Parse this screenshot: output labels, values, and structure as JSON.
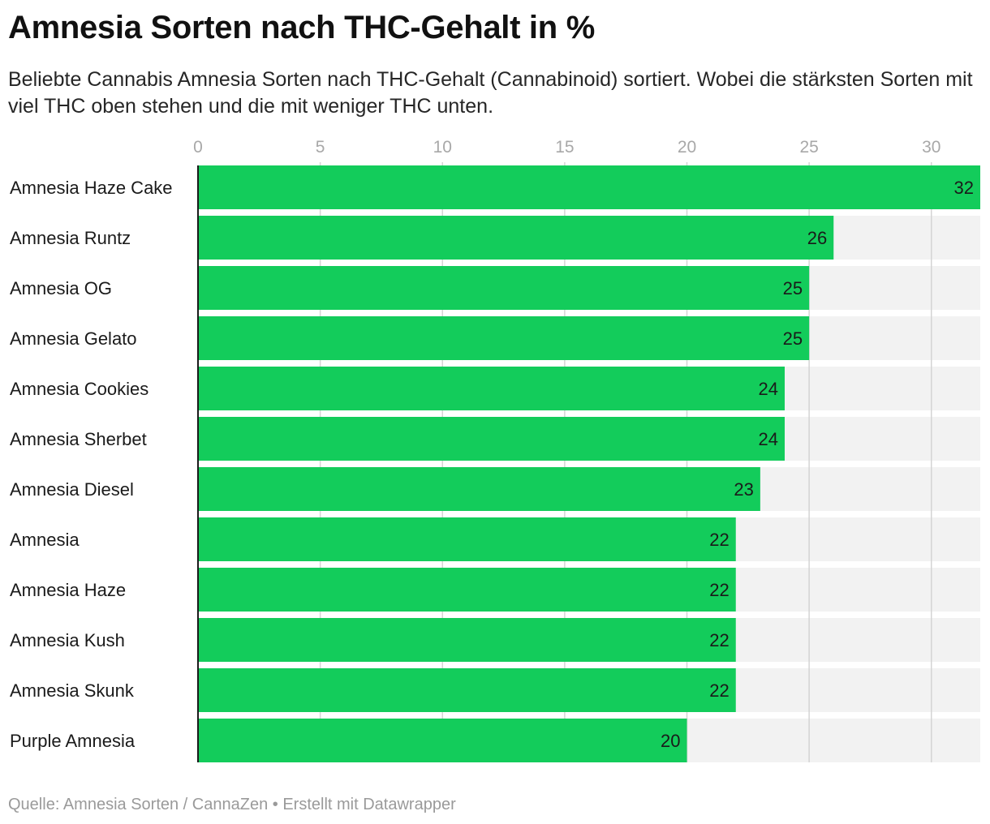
{
  "header": {
    "title": "Amnesia Sorten nach THC-Gehalt in %",
    "subtitle": "Beliebte Cannabis Amnesia Sorten nach THC-Gehalt (Cannabinoid) sortiert. Wobei die stärksten Sorten mit viel THC oben stehen und die mit weniger THC unten."
  },
  "footer": {
    "source": "Quelle: Amnesia Sorten / CannaZen",
    "separator": "•",
    "credit": "Erstellt mit Datawrapper"
  },
  "colors": {
    "bar": "#13cc5b",
    "background_bar": "#f2f2f2",
    "grid": "#d4d4d4",
    "axis": "#1a1a1a",
    "tick_label": "#a8a8a8"
  },
  "chart_data": {
    "type": "bar",
    "orientation": "horizontal",
    "categories": [
      "Amnesia Haze Cake",
      "Amnesia Runtz",
      "Amnesia OG",
      "Amnesia Gelato",
      "Amnesia Cookies",
      "Amnesia Sherbet",
      "Amnesia Diesel",
      "Amnesia",
      "Amnesia Haze",
      "Amnesia Kush",
      "Amnesia Skunk",
      "Purple Amnesia"
    ],
    "values": [
      32,
      26,
      25,
      25,
      24,
      24,
      23,
      22,
      22,
      22,
      22,
      20
    ],
    "xlim": [
      0,
      32
    ],
    "xticks": [
      0,
      5,
      10,
      15,
      20,
      25,
      30
    ],
    "xlabel": "",
    "ylabel": "",
    "grid": true,
    "data_labels": true
  }
}
